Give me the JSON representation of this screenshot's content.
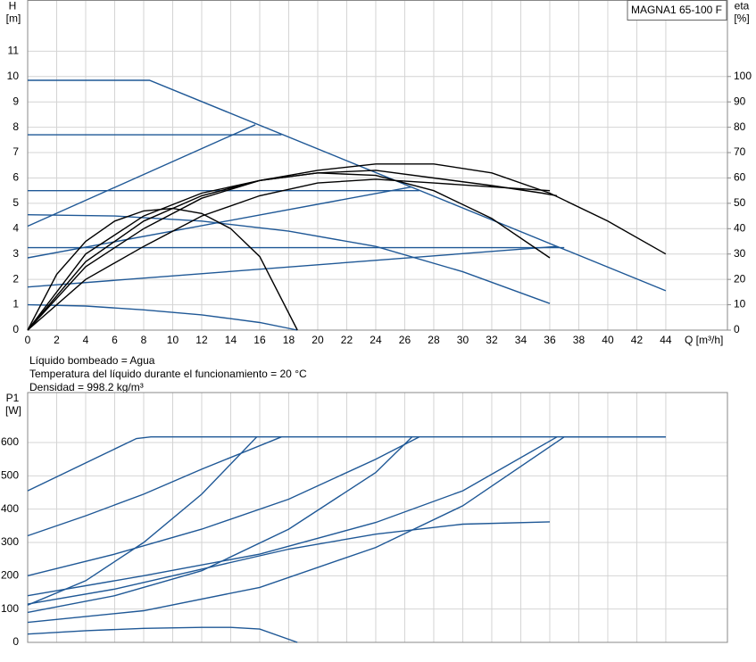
{
  "chart_data": [
    {
      "type": "line",
      "title": "MAGNA1 65-100 F",
      "y_label": "H",
      "y_unit": "[m]",
      "y2_label": "eta",
      "y2_unit": "[%]",
      "x_label": "Q [m³/h]",
      "notes": [
        "Líquido bombeado = Agua",
        "Temperatura del líquido durante el funcionamiento = 20 °C",
        "Densidad = 998.2 kg/m³"
      ],
      "xlim": [
        0,
        48.25
      ],
      "xticks": [
        0,
        2,
        4,
        6,
        8,
        10,
        12,
        14,
        16,
        18,
        20,
        22,
        24,
        26,
        28,
        30,
        32,
        34,
        36,
        38,
        40,
        42,
        44
      ],
      "ylim": [
        0,
        13
      ],
      "yticks": [
        0,
        1,
        2,
        3,
        4,
        5,
        6,
        7,
        8,
        9,
        10,
        11
      ],
      "y2lim": [
        0,
        130
      ],
      "y2ticks": [
        0,
        10,
        20,
        30,
        40,
        50,
        60,
        70,
        80,
        90,
        100
      ],
      "grid": true,
      "show_xtick_labels": true,
      "series": [
        {
          "color": "#1f5896",
          "x": [
            0,
            8.4,
            44
          ],
          "values": [
            9.85,
            9.85,
            1.55
          ]
        },
        {
          "color": "#1f5896",
          "x": [
            0,
            17.5
          ],
          "values": [
            7.7,
            7.7
          ]
        },
        {
          "color": "#1f5896",
          "x": [
            0,
            27
          ],
          "values": [
            5.5,
            5.5
          ]
        },
        {
          "color": "#1f5896",
          "x": [
            0,
            37
          ],
          "values": [
            3.25,
            3.25
          ]
        },
        {
          "color": "#1f5896",
          "x": [
            0,
            15.7
          ],
          "values": [
            4.1,
            8.1
          ]
        },
        {
          "color": "#1f5896",
          "x": [
            0,
            26.5
          ],
          "values": [
            2.85,
            5.65
          ]
        },
        {
          "color": "#1f5896",
          "x": [
            0,
            36.5
          ],
          "values": [
            1.7,
            3.3
          ]
        },
        {
          "color": "#1f5896",
          "x": [
            0,
            6,
            12,
            18,
            24,
            30,
            36
          ],
          "values": [
            4.55,
            4.5,
            4.3,
            3.9,
            3.3,
            2.3,
            1.05
          ]
        },
        {
          "color": "#1f5896",
          "x": [
            0,
            4,
            8,
            12,
            16,
            18.6
          ],
          "values": [
            1.0,
            0.95,
            0.8,
            0.6,
            0.3,
            0
          ]
        },
        {
          "color": "#000000",
          "axis": "y2",
          "x": [
            0,
            4,
            8,
            12,
            16,
            20,
            24,
            28,
            32,
            36,
            40,
            44
          ],
          "values": [
            0,
            25,
            40,
            52,
            59,
            63,
            65.5,
            65.5,
            62,
            54,
            43,
            30
          ]
        },
        {
          "color": "#000000",
          "axis": "y2",
          "x": [
            0,
            2,
            4,
            6,
            8,
            10,
            12,
            14,
            16,
            18.6
          ],
          "values": [
            0,
            22,
            35,
            43,
            47,
            48,
            46,
            40,
            29,
            0
          ]
        },
        {
          "color": "#000000",
          "axis": "y2",
          "x": [
            0,
            4,
            8,
            12,
            16,
            20,
            24,
            28,
            32,
            36
          ],
          "values": [
            0,
            27,
            43,
            53,
            59,
            62,
            61,
            55,
            44,
            28.5
          ]
        },
        {
          "color": "#000000",
          "axis": "y2",
          "x": [
            0,
            4,
            8,
            12,
            16,
            20,
            24,
            28,
            32,
            35.5,
            36.5
          ],
          "values": [
            0,
            30,
            45,
            54,
            59,
            62,
            63,
            60,
            57,
            54,
            53
          ]
        },
        {
          "color": "#000000",
          "axis": "y2",
          "x": [
            0,
            4,
            8,
            12,
            16,
            20,
            24,
            28,
            32,
            36
          ],
          "values": [
            0,
            20,
            33,
            45,
            53,
            58,
            59.5,
            58,
            56.5,
            55
          ]
        }
      ]
    },
    {
      "type": "line",
      "y_label": "P1",
      "y_unit": "[W]",
      "xlim": [
        0,
        48.25
      ],
      "xticks": [
        0,
        2,
        4,
        6,
        8,
        10,
        12,
        14,
        16,
        18,
        20,
        22,
        24,
        26,
        28,
        30,
        32,
        34,
        36,
        38,
        40,
        42,
        44
      ],
      "ylim": [
        0,
        750
      ],
      "yticks": [
        0,
        100,
        200,
        300,
        400,
        500,
        600
      ],
      "grid": true,
      "show_xtick_labels": false,
      "series": [
        {
          "color": "#1f5896",
          "x": [
            0,
            7.5,
            8.5,
            44
          ],
          "values": [
            455,
            612,
            617,
            617
          ]
        },
        {
          "color": "#1f5896",
          "x": [
            0,
            4,
            8,
            12,
            17.5
          ],
          "values": [
            320,
            380,
            445,
            520,
            617
          ]
        },
        {
          "color": "#1f5896",
          "x": [
            0,
            6,
            12,
            18,
            24,
            27
          ],
          "values": [
            200,
            265,
            340,
            430,
            550,
            617
          ]
        },
        {
          "color": "#1f5896",
          "x": [
            0,
            4,
            8,
            12,
            15.8
          ],
          "values": [
            112,
            185,
            300,
            445,
            617
          ]
        },
        {
          "color": "#1f5896",
          "x": [
            0,
            6,
            12,
            18,
            24,
            26.5
          ],
          "values": [
            90,
            140,
            215,
            340,
            510,
            617
          ]
        },
        {
          "color": "#1f5896",
          "x": [
            0,
            8,
            16,
            24,
            30,
            37,
            44
          ],
          "values": [
            60,
            95,
            165,
            285,
            410,
            617,
            617
          ]
        },
        {
          "color": "#1f5896",
          "x": [
            0,
            6,
            12,
            18,
            24,
            30,
            36
          ],
          "values": [
            115,
            160,
            220,
            280,
            325,
            355,
            362
          ]
        },
        {
          "color": "#1f5896",
          "x": [
            0,
            4,
            8,
            12,
            14,
            16,
            18.6
          ],
          "values": [
            25,
            35,
            42,
            45,
            45,
            40,
            0
          ]
        },
        {
          "color": "#1f5896",
          "x": [
            0,
            8,
            16,
            24,
            30,
            36.5
          ],
          "values": [
            140,
            200,
            265,
            360,
            455,
            617
          ]
        }
      ]
    }
  ]
}
